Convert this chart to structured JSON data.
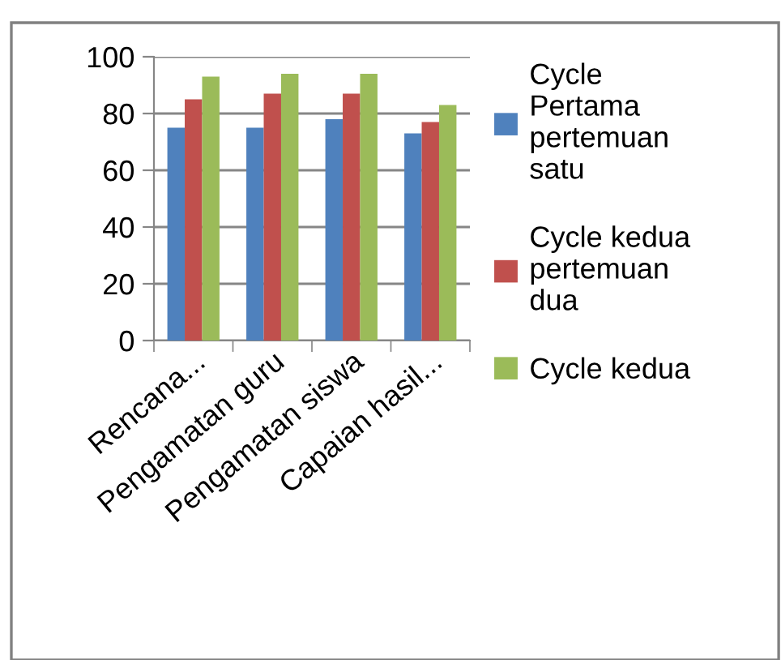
{
  "chart_data": {
    "type": "bar",
    "categories": [
      "Rencana...",
      "Pengamatan guru",
      "Pengamatan siswa",
      "Capaian hasil..."
    ],
    "series": [
      {
        "name": "Cycle\nPertama\npertemuan\nsatu",
        "color": "#4f81bd",
        "values": [
          75,
          75,
          78,
          73
        ]
      },
      {
        "name": "Cycle kedua\npertemuan\ndua",
        "color": "#c0504d",
        "values": [
          85,
          87,
          87,
          77
        ]
      },
      {
        "name": "Cycle kedua",
        "color": "#9bbb59",
        "values": [
          93,
          94,
          94,
          83
        ]
      }
    ],
    "ylim": [
      0,
      100
    ],
    "yticks": [
      0,
      20,
      40,
      60,
      80,
      100
    ],
    "grid": "y",
    "legend": "right"
  }
}
